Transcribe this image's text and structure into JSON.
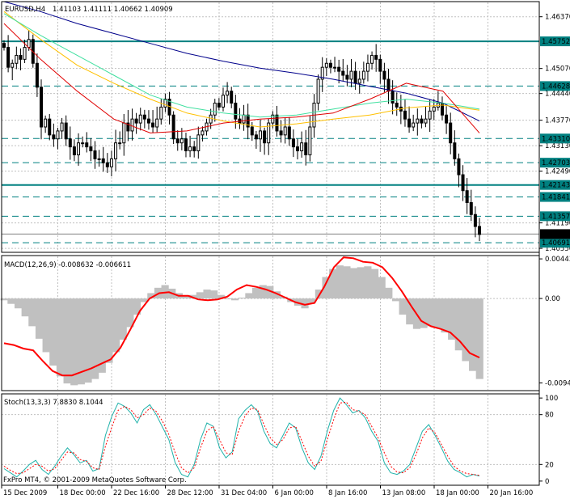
{
  "chart_data": {
    "type": "candlestick",
    "header": {
      "symbol": "EURUSD,H4",
      "ohlc": "1.41103 1.41111 1.40662 1.40909"
    },
    "footer": "FxPro MT4, © 2001-2009 MetaQuotes Software Corp.",
    "price_axis": {
      "ticks": [
        "1.46370",
        "1.45070",
        "1.44440",
        "1.43770",
        "1.43130",
        "1.42490",
        "1.41190",
        "1.40550"
      ],
      "tick_values": [
        1.4637,
        1.4507,
        1.4444,
        1.4377,
        1.4313,
        1.4249,
        1.4119,
        1.4055
      ],
      "ylim": [
        1.4045,
        1.4675
      ]
    },
    "time_axis": [
      "15 Dec 2009",
      "18 Dec 00:00",
      "22 Dec 16:00",
      "28 Dec 12:00",
      "31 Dec 04:00",
      "6 Jan 00:00",
      "8 Jan 16:00",
      "13 Jan 08:00",
      "18 Jan 00:00",
      "20 Jan 16:00"
    ],
    "levels": [
      {
        "label": "1.45752",
        "value": 1.45752,
        "style": "solid",
        "color": "#008080"
      },
      {
        "label": "1.44628",
        "value": 1.44628,
        "style": "dashed",
        "color": "#008080"
      },
      {
        "label": "1.43310",
        "value": 1.4331,
        "style": "dashed",
        "color": "#008080"
      },
      {
        "label": "1.42703",
        "value": 1.42703,
        "style": "dashed",
        "color": "#008080"
      },
      {
        "label": "1.42143",
        "value": 1.42143,
        "style": "solid",
        "color": "#008080"
      },
      {
        "label": "1.41841",
        "value": 1.41841,
        "style": "dashed",
        "color": "#008080"
      },
      {
        "label": "1.41357",
        "value": 1.41357,
        "style": "dashed",
        "color": "#008080"
      },
      {
        "label": "1.40691",
        "value": 1.40691,
        "style": "dashed",
        "color": "#008080"
      }
    ],
    "current_price": {
      "label": "1.40909",
      "value": 1.40909
    },
    "close_path": [
      1.456,
      1.451,
      1.452,
      1.454,
      1.453,
      1.456,
      1.458,
      1.452,
      1.446,
      1.436,
      1.438,
      1.434,
      1.433,
      1.435,
      1.437,
      1.433,
      1.431,
      1.429,
      1.432,
      1.432,
      1.431,
      1.43,
      1.428,
      1.428,
      1.427,
      1.426,
      1.428,
      1.432,
      1.432,
      1.437,
      1.435,
      1.438,
      1.437,
      1.439,
      1.438,
      1.437,
      1.436,
      1.438,
      1.441,
      1.443,
      1.439,
      1.433,
      1.432,
      1.433,
      1.43,
      1.431,
      1.43,
      1.434,
      1.435,
      1.437,
      1.439,
      1.442,
      1.441,
      1.444,
      1.445,
      1.442,
      1.438,
      1.437,
      1.439,
      1.436,
      1.434,
      1.433,
      1.435,
      1.432,
      1.437,
      1.439,
      1.435,
      1.434,
      1.436,
      1.433,
      1.431,
      1.43,
      1.432,
      1.429,
      1.436,
      1.442,
      1.448,
      1.451,
      1.452,
      1.451,
      1.451,
      1.45,
      1.449,
      1.448,
      1.45,
      1.447,
      1.448,
      1.45,
      1.452,
      1.454,
      1.453,
      1.45,
      1.448,
      1.445,
      1.442,
      1.441,
      1.44,
      1.438,
      1.436,
      1.437,
      1.438,
      1.437,
      1.438,
      1.44,
      1.441,
      1.442,
      1.439,
      1.437,
      1.432,
      1.428,
      1.424,
      1.42,
      1.417,
      1.414,
      1.411,
      1.409
    ],
    "moving_averages": [
      {
        "color": "#00008b",
        "values": [
          1.4675,
          1.465,
          1.462,
          1.4595,
          1.457,
          1.4545,
          1.4525,
          1.4508,
          1.4495,
          1.448,
          1.4462,
          1.4445,
          1.442,
          1.4375
        ]
      },
      {
        "color": "#ffc000",
        "values": [
          1.465,
          1.458,
          1.4515,
          1.447,
          1.443,
          1.4395,
          1.4375,
          1.436,
          1.4368,
          1.438,
          1.439,
          1.4408,
          1.4415,
          1.4402
        ]
      },
      {
        "color": "#40e0a0",
        "values": [
          1.4645,
          1.459,
          1.454,
          1.449,
          1.444,
          1.441,
          1.4395,
          1.4385,
          1.439,
          1.4405,
          1.442,
          1.443,
          1.442,
          1.4405
        ]
      },
      {
        "color": "#e00000",
        "values": [
          1.462,
          1.453,
          1.445,
          1.438,
          1.4345,
          1.435,
          1.437,
          1.438,
          1.4385,
          1.4395,
          1.443,
          1.447,
          1.445,
          1.4345
        ]
      }
    ],
    "macd": {
      "label": "MACD(12,26,9) -0.008632 -0.006611",
      "ticks": [
        "0.00443",
        "0.00",
        "-0.00944"
      ],
      "tick_values": [
        0.00443,
        0.0,
        -0.00944
      ],
      "ylim": [
        -0.0103,
        0.0048
      ],
      "histogram": [
        -0.0002,
        -0.0006,
        -0.0011,
        -0.002,
        -0.0031,
        -0.0045,
        -0.006,
        -0.0075,
        -0.0087,
        -0.0095,
        -0.0097,
        -0.0096,
        -0.0094,
        -0.009,
        -0.0083,
        -0.0072,
        -0.006,
        -0.0046,
        -0.0032,
        -0.0018,
        -0.0004,
        0.0006,
        0.0012,
        0.0015,
        0.0011,
        0.0006,
        0.0003,
        0.0004,
        0.0007,
        0.001,
        0.0009,
        0.0004,
        0.0,
        -0.0002,
        0.0001,
        0.0006,
        0.0012,
        0.0015,
        0.0014,
        0.0008,
        0.0002,
        -0.0004,
        -0.0008,
        -0.0011,
        -0.0005,
        0.001,
        0.0024,
        0.0033,
        0.0037,
        0.0036,
        0.0034,
        0.0035,
        0.0036,
        0.0033,
        0.0024,
        0.0012,
        -0.0003,
        -0.0018,
        -0.0029,
        -0.0034,
        -0.0033,
        -0.0031,
        -0.0033,
        -0.0038,
        -0.0046,
        -0.0058,
        -0.007,
        -0.0081,
        -0.009
      ],
      "signal": [
        -0.005,
        -0.0052,
        -0.0056,
        -0.0058,
        -0.007,
        -0.0081,
        -0.0086,
        -0.0086,
        -0.0082,
        -0.0078,
        -0.0073,
        -0.0068,
        -0.0055,
        -0.0035,
        -0.0014,
        0.0,
        0.0006,
        0.0007,
        0.0003,
        0.0003,
        -0.0001,
        -0.0002,
        -0.0001,
        0.0002,
        0.001,
        0.0015,
        0.0013,
        0.001,
        0.0006,
        0.0001,
        -0.0004,
        -0.0007,
        -0.0005,
        0.0013,
        0.0035,
        0.0046,
        0.0045,
        0.0041,
        0.004,
        0.0035,
        0.0023,
        0.0008,
        -0.0009,
        -0.0025,
        -0.0031,
        -0.0034,
        -0.0038,
        -0.0048,
        -0.0061,
        -0.0066
      ]
    },
    "stoch": {
      "label": "Stoch(13,3,3) 7.8830 8.1044",
      "ticks": [
        "100",
        "80",
        "20",
        "0"
      ],
      "tick_values": [
        100,
        80,
        20,
        0
      ],
      "ylim": [
        -5,
        105
      ],
      "main": [
        15,
        10,
        5,
        12,
        20,
        25,
        14,
        8,
        18,
        30,
        40,
        32,
        22,
        25,
        12,
        15,
        55,
        78,
        94,
        90,
        82,
        70,
        86,
        92,
        80,
        65,
        50,
        22,
        8,
        5,
        20,
        50,
        70,
        66,
        40,
        28,
        35,
        75,
        85,
        92,
        84,
        60,
        45,
        40,
        55,
        70,
        64,
        40,
        22,
        14,
        30,
        60,
        85,
        100,
        92,
        82,
        85,
        76,
        60,
        48,
        22,
        10,
        8,
        12,
        20,
        40,
        60,
        68,
        55,
        40,
        24,
        14,
        10,
        5,
        8,
        6
      ],
      "signal": [
        18,
        13,
        9,
        10,
        15,
        20,
        18,
        12,
        15,
        25,
        35,
        34,
        26,
        24,
        16,
        14,
        42,
        65,
        85,
        90,
        86,
        76,
        80,
        88,
        84,
        72,
        56,
        34,
        16,
        10,
        16,
        40,
        60,
        66,
        50,
        34,
        32,
        60,
        78,
        88,
        86,
        68,
        52,
        44,
        50,
        64,
        66,
        48,
        30,
        18,
        24,
        50,
        74,
        94,
        95,
        86,
        84,
        80,
        66,
        52,
        34,
        18,
        11,
        10,
        16,
        32,
        52,
        64,
        58,
        44,
        30,
        18,
        12,
        9,
        8,
        7
      ]
    },
    "colors": {
      "bull": "#000000",
      "bear": "#000000",
      "macd_hist": "#c0c0c0",
      "macd_signal": "#ff0000",
      "stoch_main": "#20b2aa",
      "stoch_signal": "#ff0000",
      "grid": "#c0c0c0",
      "current": "#000000"
    }
  }
}
